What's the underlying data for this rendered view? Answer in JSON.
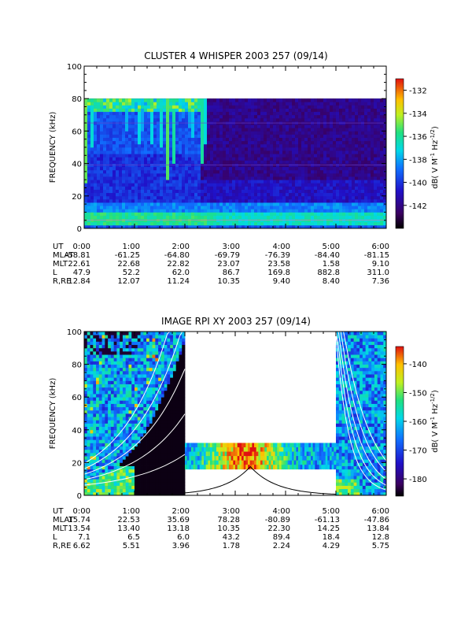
{
  "chart_data": [
    {
      "type": "heatmap",
      "title": "CLUSTER 4 WHISPER 2003 257 (09/14)",
      "ylabel": "FREQUENCY (kHz)",
      "ylim": [
        0,
        100
      ],
      "yticks": [
        "0",
        "20",
        "40",
        "60",
        "80",
        "100"
      ],
      "xticks": [
        "0:00",
        "1:00",
        "2:00",
        "3:00",
        "4:00",
        "5:00",
        "6:00"
      ],
      "data_top_khz": 80,
      "colorbar": {
        "label": "dB( V M⁻¹ Hz⁻¹ᐟ²)",
        "label_main": "dB( V M",
        "label_sup1": "-1",
        "label_hz": " Hz",
        "label_sup2": "-1/2",
        "label_close": ")",
        "range": [
          -144,
          -131
        ],
        "ticks": [
          "-132",
          "-134",
          "-136",
          "-138",
          "-140",
          "-142"
        ]
      },
      "ephemeris": {
        "labels": [
          "UT",
          "MLAT",
          "MLT",
          "L",
          "R,RE"
        ],
        "UT": [
          "0:00",
          "1:00",
          "2:00",
          "3:00",
          "4:00",
          "5:00",
          "6:00"
        ],
        "MLAT": [
          "-58.81",
          "-61.25",
          "-64.80",
          "-69.79",
          "-76.39",
          "-84.40",
          "-81.15"
        ],
        "MLT": [
          "22.61",
          "22.68",
          "22.82",
          "23.07",
          "23.58",
          "1.58",
          "9.10"
        ],
        "L": [
          "47.9",
          "52.2",
          "62.0",
          "86.7",
          "169.8",
          "882.8",
          "311.0"
        ],
        "R,RE": [
          "12.84",
          "12.07",
          "11.24",
          "10.35",
          "9.40",
          "8.40",
          "7.36"
        ]
      }
    },
    {
      "type": "heatmap",
      "title": "IMAGE RPI XY 2003 257 (09/14)",
      "ylabel": "FREQUENCY (kHz)",
      "ylim": [
        0,
        100
      ],
      "yticks": [
        "0",
        "20",
        "40",
        "60",
        "80",
        "100"
      ],
      "xticks": [
        "0:00",
        "1:00",
        "2:00",
        "3:00",
        "4:00",
        "5:00",
        "6:00"
      ],
      "data_gaps_ut_hours": [
        [
          2.0,
          5.0
        ]
      ],
      "band_khz": [
        16,
        32
      ],
      "colorbar": {
        "label_main": "dB( V M",
        "label_sup1": "-1",
        "label_hz": " Hz",
        "label_sup2": "-1/2",
        "label_close": ")",
        "range": [
          -186,
          -134
        ],
        "ticks": [
          "-140",
          "-150",
          "-160",
          "-170",
          "-180"
        ]
      },
      "ephemeris": {
        "labels": [
          "UT",
          "MLAT",
          "MLT",
          "L",
          "R,RE"
        ],
        "UT": [
          "0:00",
          "1:00",
          "2:00",
          "3:00",
          "4:00",
          "5:00",
          "6:00"
        ],
        "MLAT": [
          "15.74",
          "22.53",
          "35.69",
          "78.28",
          "-80.89",
          "-61.13",
          "-47.86"
        ],
        "MLT": [
          "13.54",
          "13.40",
          "13.18",
          "10.35",
          "22.30",
          "14.25",
          "13.84"
        ],
        "L": [
          "7.1",
          "6.5",
          "6.0",
          "43.2",
          "89.4",
          "18.4",
          "12.8"
        ],
        "R,RE": [
          "6.62",
          "5.51",
          "3.96",
          "1.78",
          "2.24",
          "4.29",
          "5.75"
        ]
      }
    }
  ]
}
